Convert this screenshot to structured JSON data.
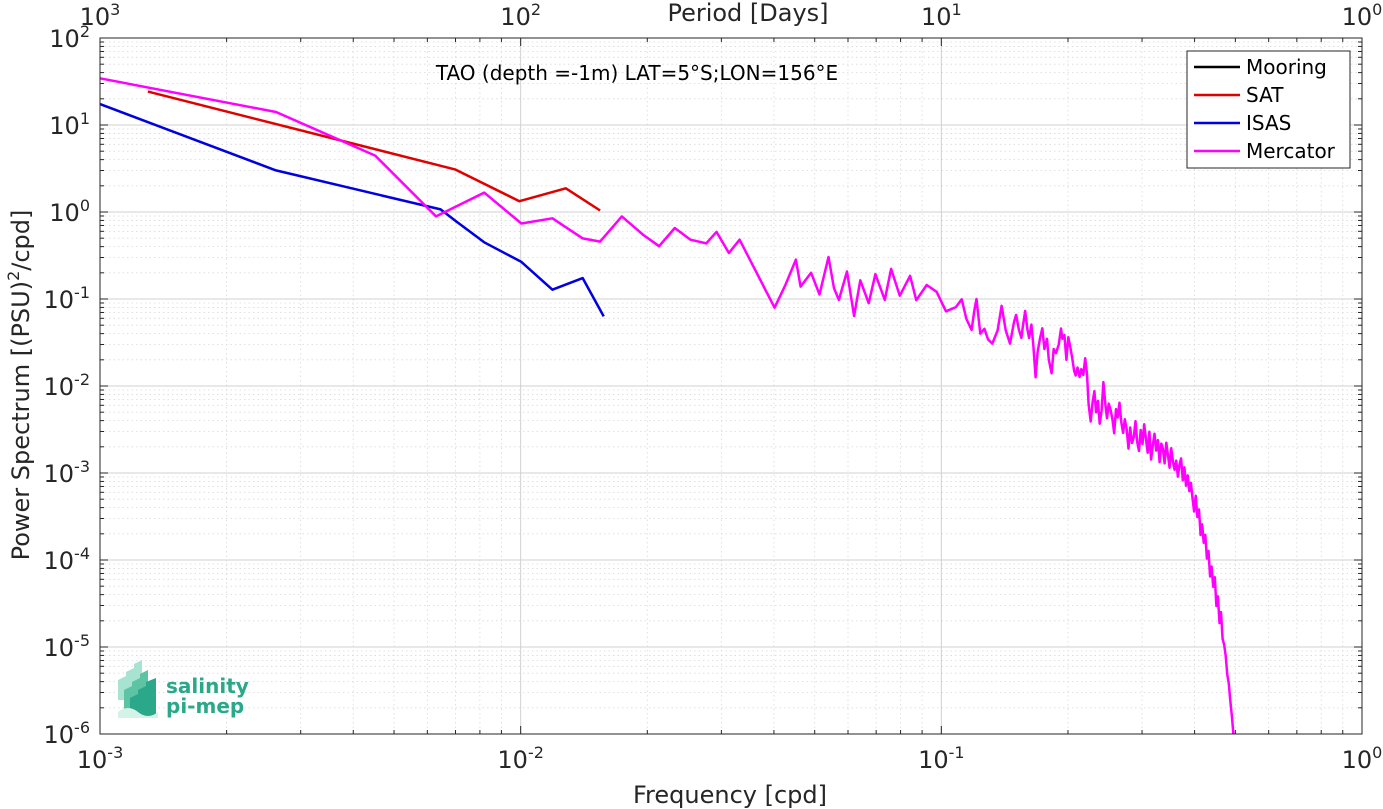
{
  "chart_data": {
    "type": "line",
    "title": "TAO (depth =-1m) LAT=5°S;LON=156°E",
    "xlabel": "Frequency [cpd]",
    "ylabel": "Power Spectrum [(PSU)²/cpd]",
    "ylabel_parts": {
      "before": "Power Spectrum [(PSU)",
      "sup": "2",
      "after": "/cpd]"
    },
    "top_xlabel": "Period [Days]",
    "xscale": "log",
    "yscale": "log",
    "xlim": [
      0.001,
      1
    ],
    "ylim": [
      1e-06,
      100
    ],
    "grid": true,
    "legend_position": "top-right",
    "x_ticks": [
      {
        "base": "10",
        "exp": "-3",
        "value": 0.001
      },
      {
        "base": "10",
        "exp": "-2",
        "value": 0.01
      },
      {
        "base": "10",
        "exp": "-1",
        "value": 0.1
      },
      {
        "base": "10",
        "exp": "0",
        "value": 1
      }
    ],
    "top_x_ticks": [
      {
        "base": "10",
        "exp": "3",
        "value": 0.001
      },
      {
        "base": "10",
        "exp": "2",
        "value": 0.01
      },
      {
        "base": "10",
        "exp": "1",
        "value": 0.1
      },
      {
        "base": "10",
        "exp": "0",
        "value": 1
      }
    ],
    "y_ticks": [
      {
        "base": "10",
        "exp": "2",
        "value": 100
      },
      {
        "base": "10",
        "exp": "1",
        "value": 10
      },
      {
        "base": "10",
        "exp": "0",
        "value": 1
      },
      {
        "base": "10",
        "exp": "-1",
        "value": 0.1
      },
      {
        "base": "10",
        "exp": "-2",
        "value": 0.01
      },
      {
        "base": "10",
        "exp": "-3",
        "value": 0.001
      },
      {
        "base": "10",
        "exp": "-4",
        "value": 0.0001
      },
      {
        "base": "10",
        "exp": "-5",
        "value": 1e-05
      },
      {
        "base": "10",
        "exp": "-6",
        "value": 1e-06
      }
    ],
    "series": [
      {
        "name": "Mooring",
        "color": "#000000",
        "points": []
      },
      {
        "name": "SAT",
        "color": "#e00000",
        "points": [
          [
            0.0013,
            24.2
          ],
          [
            0.00698,
            3.09
          ],
          [
            0.00993,
            1.33
          ],
          [
            0.0128,
            1.87
          ],
          [
            0.01545,
            1.04
          ]
        ]
      },
      {
        "name": "ISAS",
        "color": "#0000e0",
        "points": [
          [
            0.001,
            17.4
          ],
          [
            0.00262,
            3.01
          ],
          [
            0.00645,
            1.07
          ],
          [
            0.00702,
            0.782
          ],
          [
            0.00819,
            0.448
          ],
          [
            0.01004,
            0.267
          ],
          [
            0.0119,
            0.128
          ],
          [
            0.01404,
            0.174
          ],
          [
            0.01575,
            0.0631
          ]
        ]
      },
      {
        "name": "Mercator",
        "color": "#ff00ff",
        "points": [
          [
            0.001,
            34.4
          ],
          [
            0.00262,
            14.1
          ],
          [
            0.00451,
            4.45
          ],
          [
            0.00629,
            0.891
          ],
          [
            0.00819,
            1.67
          ],
          [
            0.01004,
            0.737
          ],
          [
            0.0119,
            0.846
          ],
          [
            0.01404,
            0.497
          ],
          [
            0.01545,
            0.457
          ],
          [
            0.01739,
            0.891
          ],
          [
            0.01958,
            0.544
          ],
          [
            0.02134,
            0.405
          ],
          [
            0.02325,
            0.655
          ],
          [
            0.02534,
            0.48
          ],
          [
            0.02761,
            0.436
          ],
          [
            0.02921,
            0.591
          ],
          [
            0.03126,
            0.338
          ],
          [
            0.03315,
            0.48
          ],
          [
            0.04014,
            0.0794
          ],
          [
            0.04256,
            0.144
          ],
          [
            0.04512,
            0.284
          ],
          [
            0.04628,
            0.139
          ],
          [
            0.04903,
            0.2
          ],
          [
            0.05132,
            0.113
          ],
          [
            0.05393,
            0.304
          ],
          [
            0.05558,
            0.133
          ],
          [
            0.05707,
            0.0977
          ],
          [
            0.05966,
            0.207
          ],
          [
            0.06203,
            0.0637
          ],
          [
            0.06418,
            0.164
          ],
          [
            0.06719,
            0.0895
          ],
          [
            0.06969,
            0.193
          ],
          [
            0.0734,
            0.0976
          ],
          [
            0.07594,
            0.222
          ],
          [
            0.07965,
            0.109
          ],
          [
            0.08428,
            0.185
          ],
          [
            0.08718,
            0.0969
          ],
          [
            0.0923,
            0.145
          ],
          [
            0.09744,
            0.121
          ],
          [
            0.1026,
            0.0722
          ],
          [
            0.1083,
            0.0807
          ],
          [
            0.1118,
            0.0991
          ],
          [
            0.1147,
            0.0591
          ],
          [
            0.118,
            0.044
          ],
          [
            0.1197,
            0.072
          ],
          [
            0.1212,
            0.1
          ],
          [
            0.1238,
            0.04
          ],
          [
            0.1266,
            0.0455
          ],
          [
            0.1292,
            0.0342
          ],
          [
            0.1322,
            0.0307
          ],
          [
            0.1361,
            0.0434
          ],
          [
            0.1391,
            0.0836
          ],
          [
            0.1422,
            0.0439
          ],
          [
            0.1456,
            0.0307
          ],
          [
            0.1489,
            0.0549
          ],
          [
            0.1506,
            0.0657
          ],
          [
            0.1528,
            0.0449
          ],
          [
            0.155,
            0.0357
          ],
          [
            0.1564,
            0.0497
          ],
          [
            0.1583,
            0.0727
          ],
          [
            0.1601,
            0.0454
          ],
          [
            0.1617,
            0.0356
          ],
          [
            0.1637,
            0.0508
          ],
          [
            0.1655,
            0.0286
          ],
          [
            0.1675,
            0.0126
          ],
          [
            0.1694,
            0.0246
          ],
          [
            0.1716,
            0.0352
          ],
          [
            0.1738,
            0.046
          ],
          [
            0.1758,
            0.0266
          ],
          [
            0.1783,
            0.0349
          ],
          [
            0.1801,
            0.02
          ],
          [
            0.1829,
            0.014
          ],
          [
            0.185,
            0.0266
          ],
          [
            0.1873,
            0.0238
          ],
          [
            0.1902,
            0.0302
          ],
          [
            0.1925,
            0.0458
          ],
          [
            0.194,
            0.035
          ],
          [
            0.1961,
            0.0386
          ],
          [
            0.1983,
            0.02
          ],
          [
            0.2004,
            0.0364
          ],
          [
            0.2027,
            0.0276
          ],
          [
            0.2047,
            0.021
          ],
          [
            0.2068,
            0.015
          ],
          [
            0.2087,
            0.0132
          ],
          [
            0.2107,
            0.0163
          ],
          [
            0.2131,
            0.0127
          ],
          [
            0.2152,
            0.0156
          ],
          [
            0.2175,
            0.0134
          ],
          [
            0.2198,
            0.0208
          ],
          [
            0.2219,
            0.0137
          ],
          [
            0.2239,
            0.00617
          ],
          [
            0.2265,
            0.00391
          ],
          [
            0.2288,
            0.00638
          ],
          [
            0.2311,
            0.00873
          ],
          [
            0.2333,
            0.00498
          ],
          [
            0.2356,
            0.00675
          ],
          [
            0.238,
            0.00369
          ],
          [
            0.2404,
            0.00523
          ],
          [
            0.2428,
            0.0111
          ],
          [
            0.2452,
            0.00642
          ],
          [
            0.2476,
            0.00426
          ],
          [
            0.25,
            0.00628
          ],
          [
            0.2525,
            0.00531
          ],
          [
            0.255,
            0.00416
          ],
          [
            0.2576,
            0.00287
          ],
          [
            0.2601,
            0.00543
          ],
          [
            0.2626,
            0.00434
          ],
          [
            0.2652,
            0.00642
          ],
          [
            0.2678,
            0.00384
          ],
          [
            0.2705,
            0.00289
          ],
          [
            0.273,
            0.00415
          ],
          [
            0.2758,
            0.00316
          ],
          [
            0.2785,
            0.00191
          ],
          [
            0.2811,
            0.00333
          ],
          [
            0.2839,
            0.00221
          ],
          [
            0.2867,
            0.00259
          ],
          [
            0.2894,
            0.00395
          ],
          [
            0.2922,
            0.00227
          ],
          [
            0.295,
            0.00179
          ],
          [
            0.2978,
            0.00312
          ],
          [
            0.3007,
            0.00216
          ],
          [
            0.3036,
            0.00364
          ],
          [
            0.3065,
            0.00244
          ],
          [
            0.3094,
            0.00171
          ],
          [
            0.3123,
            0.00298
          ],
          [
            0.3152,
            0.00143
          ],
          [
            0.3182,
            0.00209
          ],
          [
            0.3212,
            0.00283
          ],
          [
            0.3242,
            0.00181
          ],
          [
            0.3272,
            0.00239
          ],
          [
            0.3302,
            0.00133
          ],
          [
            0.3333,
            0.00218
          ],
          [
            0.3363,
            0.00191
          ],
          [
            0.3394,
            0.00129
          ],
          [
            0.3426,
            0.00223
          ],
          [
            0.3457,
            0.00162
          ],
          [
            0.3489,
            0.00115
          ],
          [
            0.352,
            0.00193
          ],
          [
            0.3553,
            0.00134
          ],
          [
            0.3585,
            0.00109
          ],
          [
            0.3617,
            0.00139
          ],
          [
            0.365,
            0.00091
          ],
          [
            0.3683,
            0.00126
          ],
          [
            0.3716,
            0.00147
          ],
          [
            0.375,
            0.000823
          ],
          [
            0.3783,
            0.00116
          ],
          [
            0.3817,
            0.000714
          ],
          [
            0.3851,
            0.000939
          ],
          [
            0.3885,
            0.000619
          ],
          [
            0.392,
            0.000772
          ],
          [
            0.3955,
            0.000515
          ],
          [
            0.399,
            0.000361
          ],
          [
            0.4025,
            0.000549
          ],
          [
            0.4061,
            0.000312
          ],
          [
            0.4097,
            0.000381
          ],
          [
            0.4133,
            0.000194
          ],
          [
            0.4169,
            0.000257
          ],
          [
            0.4205,
            0.000158
          ],
          [
            0.4242,
            0.000195
          ],
          [
            0.4279,
            0.000104
          ],
          [
            0.4316,
            0.000127
          ],
          [
            0.4354,
            6.46e-05
          ],
          [
            0.4391,
            8.42e-05
          ],
          [
            0.4429,
            4.92e-05
          ],
          [
            0.4468,
            6.34e-05
          ],
          [
            0.4506,
            2.96e-05
          ],
          [
            0.4545,
            3.83e-05
          ],
          [
            0.4584,
            1.88e-05
          ],
          [
            0.4623,
            2.52e-05
          ],
          [
            0.4663,
            1.24e-05
          ],
          [
            0.4703,
            1.06e-05
          ],
          [
            0.4743,
            7.9e-06
          ],
          [
            0.4783,
            4.8e-06
          ],
          [
            0.4824,
            3.8e-06
          ],
          [
            0.4864,
            2.4e-06
          ],
          [
            0.4905,
            1.6e-06
          ],
          [
            0.4946,
            1e-06
          ]
        ]
      }
    ],
    "logo": {
      "line1": "salinity",
      "line2": "pi-mep"
    }
  }
}
